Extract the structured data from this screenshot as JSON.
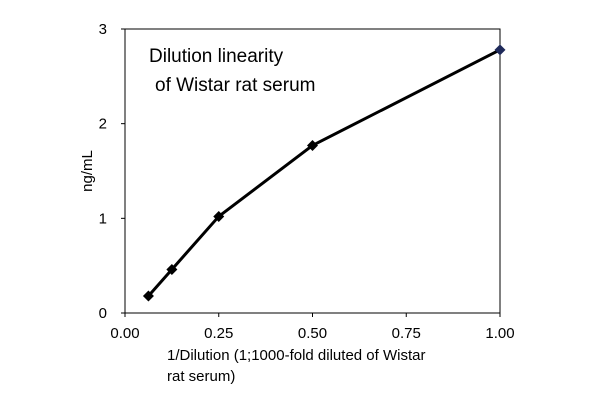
{
  "chart_data": {
    "type": "line",
    "title": "",
    "annotation_lines": [
      "Dilution linearity",
      "of Wistar rat serum"
    ],
    "xlabel_lines": [
      "1/Dilution (1;1000-fold diluted of Wistar",
      "rat serum)"
    ],
    "ylabel": "ng/mL",
    "xlim": [
      0,
      1
    ],
    "ylim": [
      0,
      3
    ],
    "x_ticks": [
      0,
      0.25,
      0.5,
      0.75,
      1
    ],
    "x_tick_labels": [
      "0.00",
      "0.25",
      "0.50",
      "0.75",
      "1.00"
    ],
    "y_ticks": [
      0,
      1,
      2,
      3
    ],
    "y_tick_labels": [
      "0",
      "1",
      "2",
      "3"
    ],
    "grid": false,
    "series": [
      {
        "x": [
          0.0625,
          0.125,
          0.25,
          0.5,
          1.0
        ],
        "y": [
          0.18,
          0.46,
          1.02,
          1.77,
          2.78
        ]
      }
    ],
    "line_color": "#000000",
    "marker_color": "#000000",
    "last_marker_color": "#1f2a5a"
  }
}
